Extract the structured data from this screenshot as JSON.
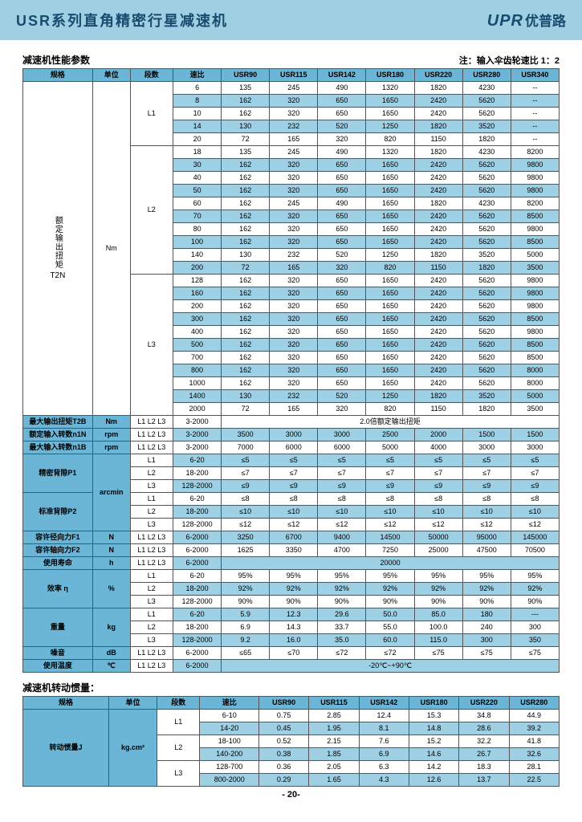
{
  "titlebar": {
    "left": "USR系列直角精密行星减速机",
    "logo_en": "UPR",
    "logo_cn": "优普路"
  },
  "table1": {
    "title": "减速机性能参数",
    "note": "注：输入伞齿轮速比 1：2",
    "head": [
      "规格",
      "单位",
      "段数",
      "速比",
      "USR90",
      "USR115",
      "USR142",
      "USR180",
      "USR220",
      "USR280",
      "USR340"
    ],
    "t2n_label_v": "额定输出扭矩",
    "t2n_label_h": "T2N",
    "t2n_unit": "Nm",
    "segL1": "L1",
    "segL2": "L2",
    "segL3": "L3",
    "L1": [
      [
        "6",
        "135",
        "245",
        "490",
        "1320",
        "1820",
        "4230",
        "--"
      ],
      [
        "8",
        "162",
        "320",
        "650",
        "1650",
        "2420",
        "5620",
        "--"
      ],
      [
        "10",
        "162",
        "320",
        "650",
        "1650",
        "2420",
        "5620",
        "--"
      ],
      [
        "14",
        "130",
        "232",
        "520",
        "1250",
        "1820",
        "3520",
        "--"
      ],
      [
        "20",
        "72",
        "165",
        "320",
        "820",
        "1150",
        "1820",
        "--"
      ]
    ],
    "L2": [
      [
        "18",
        "135",
        "245",
        "490",
        "1320",
        "1820",
        "4230",
        "8200"
      ],
      [
        "30",
        "162",
        "320",
        "650",
        "1650",
        "2420",
        "5620",
        "9800"
      ],
      [
        "40",
        "162",
        "320",
        "650",
        "1650",
        "2420",
        "5620",
        "9800"
      ],
      [
        "50",
        "162",
        "320",
        "650",
        "1650",
        "2420",
        "5620",
        "9800"
      ],
      [
        "60",
        "162",
        "245",
        "490",
        "1650",
        "1820",
        "4230",
        "8200"
      ],
      [
        "70",
        "162",
        "320",
        "650",
        "1650",
        "2420",
        "5620",
        "8500"
      ],
      [
        "80",
        "162",
        "320",
        "650",
        "1650",
        "2420",
        "5620",
        "9800"
      ],
      [
        "100",
        "162",
        "320",
        "650",
        "1650",
        "2420",
        "5620",
        "8500"
      ],
      [
        "140",
        "130",
        "232",
        "520",
        "1250",
        "1820",
        "3520",
        "5000"
      ],
      [
        "200",
        "72",
        "165",
        "320",
        "820",
        "1150",
        "1820",
        "3500"
      ]
    ],
    "L3": [
      [
        "128",
        "162",
        "320",
        "650",
        "1650",
        "2420",
        "5620",
        "9800"
      ],
      [
        "160",
        "162",
        "320",
        "650",
        "1650",
        "2420",
        "5620",
        "9800"
      ],
      [
        "200",
        "162",
        "320",
        "650",
        "1650",
        "2420",
        "5620",
        "9800"
      ],
      [
        "300",
        "162",
        "320",
        "650",
        "1650",
        "2420",
        "5620",
        "8500"
      ],
      [
        "400",
        "162",
        "320",
        "650",
        "1650",
        "2420",
        "5620",
        "9800"
      ],
      [
        "500",
        "162",
        "320",
        "650",
        "1650",
        "2420",
        "5620",
        "8500"
      ],
      [
        "700",
        "162",
        "320",
        "650",
        "1650",
        "2420",
        "5620",
        "8500"
      ],
      [
        "800",
        "162",
        "320",
        "650",
        "1650",
        "2420",
        "5620",
        "8000"
      ],
      [
        "1000",
        "162",
        "320",
        "650",
        "1650",
        "2420",
        "5620",
        "8000"
      ],
      [
        "1400",
        "130",
        "232",
        "520",
        "1250",
        "1820",
        "3520",
        "5000"
      ],
      [
        "2000",
        "72",
        "165",
        "320",
        "820",
        "1150",
        "1820",
        "3500"
      ]
    ],
    "t2b_row": {
      "label": "最大输出扭矩T2B",
      "unit": "Nm",
      "seg": "L1 L2 L3",
      "ratio": "3-2000",
      "merged": "2.0倍额定输出扭矩"
    },
    "simple_rows": [
      {
        "label": "额定输入转数n1N",
        "unit": "rpm",
        "seg": "L1 L2 L3",
        "vals": [
          "3-2000",
          "3500",
          "3000",
          "3000",
          "2500",
          "2000",
          "1500",
          "1500"
        ],
        "alt": true
      },
      {
        "label": "最大输入转数n1B",
        "unit": "rpm",
        "seg": "L1 L2 L3",
        "vals": [
          "3-2000",
          "7000",
          "6000",
          "6000",
          "5000",
          "4000",
          "3000",
          "3000"
        ],
        "alt": false
      }
    ],
    "p1": {
      "label": "精密背隙P1",
      "unit": "arcmin",
      "rows": [
        {
          "seg": "L1",
          "ratio": "6-20",
          "v": "≤5",
          "alt": true
        },
        {
          "seg": "L2",
          "ratio": "18-200",
          "v": "≤7",
          "alt": false
        },
        {
          "seg": "L3",
          "ratio": "128-2000",
          "v": "≤9",
          "alt": true
        }
      ]
    },
    "p2": {
      "label": "标准背隙P2",
      "rows": [
        {
          "seg": "L1",
          "ratio": "6-20",
          "v": "≤8",
          "alt": false
        },
        {
          "seg": "L2",
          "ratio": "18-200",
          "v": "≤10",
          "alt": true
        },
        {
          "seg": "L3",
          "ratio": "128-2000",
          "v": "≤12",
          "alt": false
        }
      ]
    },
    "f1": {
      "label": "容许径向力F1",
      "unit": "N",
      "seg": "L1 L2 L3",
      "vals": [
        "6-2000",
        "3250",
        "6700",
        "9400",
        "14500",
        "50000",
        "95000",
        "145000"
      ],
      "alt": true
    },
    "f2": {
      "label": "容许轴向力F2",
      "unit": "N",
      "seg": "L1 L2 L3",
      "vals": [
        "6-2000",
        "1625",
        "3350",
        "4700",
        "7250",
        "25000",
        "47500",
        "70500"
      ],
      "alt": false
    },
    "life": {
      "label": "使用寿命",
      "unit": "h",
      "seg": "L1 L2 L3",
      "ratio": "6-2000",
      "merged": "20000",
      "alt": true
    },
    "eff": {
      "label": "效率 η",
      "unit": "%",
      "rows": [
        {
          "seg": "L1",
          "ratio": "6-20",
          "v": "95%",
          "alt": false
        },
        {
          "seg": "L2",
          "ratio": "18-200",
          "v": "92%",
          "alt": true
        },
        {
          "seg": "L3",
          "ratio": "128-2000",
          "v": "90%",
          "alt": false
        }
      ]
    },
    "weight": {
      "label": "重量",
      "unit": "kg",
      "rows": [
        {
          "seg": "L1",
          "ratio": "6-20",
          "vals": [
            "5.9",
            "12.3",
            "29.6",
            "50.0",
            "85.0",
            "180",
            "---"
          ],
          "alt": true
        },
        {
          "seg": "L2",
          "ratio": "18-200",
          "vals": [
            "6.9",
            "14.3",
            "33.7",
            "55.0",
            "100.0",
            "240",
            "300"
          ],
          "alt": false
        },
        {
          "seg": "L3",
          "ratio": "128-2000",
          "vals": [
            "9.2",
            "16.0",
            "35.0",
            "60.0",
            "115.0",
            "300",
            "350"
          ],
          "alt": true
        }
      ]
    },
    "noise": {
      "label": "噪音",
      "unit": "dB",
      "seg": "L1 L2 L3",
      "vals": [
        "6-2000",
        "≤65",
        "≤70",
        "≤72",
        "≤72",
        "≤75",
        "≤75",
        "≤75"
      ],
      "alt": false
    },
    "temp": {
      "label": "使用温度",
      "unit": "℃",
      "seg": "L1 L2 L3",
      "ratio": "6-2000",
      "merged": "-20℃~+90℃",
      "alt": true
    }
  },
  "table2": {
    "title": "减速机转动惯量：",
    "head": [
      "规格",
      "单位",
      "段数",
      "速比",
      "USR90",
      "USR115",
      "USR142",
      "USR180",
      "USR220",
      "USR280"
    ],
    "label": "转动惯量J",
    "unit": "kg.cm²",
    "groups": [
      {
        "seg": "L1",
        "rows": [
          {
            "ratio": "6-10",
            "vals": [
              "0.75",
              "2.85",
              "12.4",
              "15.3",
              "34.8",
              "44.9"
            ],
            "alt": false
          },
          {
            "ratio": "14-20",
            "vals": [
              "0.45",
              "1.95",
              "8.1",
              "14.8",
              "28.6",
              "39.2"
            ],
            "alt": true
          }
        ]
      },
      {
        "seg": "L2",
        "rows": [
          {
            "ratio": "18-100",
            "vals": [
              "0.52",
              "2.15",
              "7.6",
              "15.2",
              "32.2",
              "41.8"
            ],
            "alt": false
          },
          {
            "ratio": "140-200",
            "vals": [
              "0.38",
              "1.85",
              "6.9",
              "14.6",
              "26.7",
              "32.6"
            ],
            "alt": true
          }
        ]
      },
      {
        "seg": "L3",
        "rows": [
          {
            "ratio": "128-700",
            "vals": [
              "0.36",
              "2.05",
              "6.3",
              "14.2",
              "18.3",
              "28.1"
            ],
            "alt": false
          },
          {
            "ratio": "800-2000",
            "vals": [
              "0.29",
              "1.65",
              "4.3",
              "12.6",
              "13.7",
              "22.5"
            ],
            "alt": true
          }
        ]
      }
    ]
  },
  "page_num": "- 20-",
  "colors": {
    "bar": "#9ecfe3",
    "hdr": "#6bb5d6",
    "alt": "#9ecfe3",
    "border": "#555"
  }
}
